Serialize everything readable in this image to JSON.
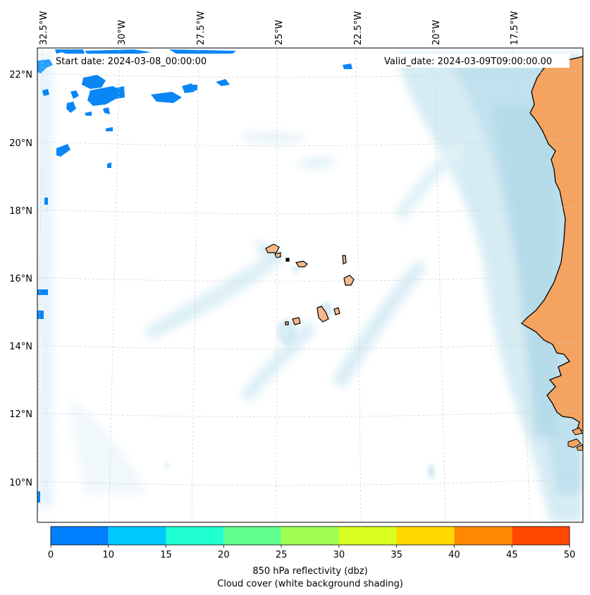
{
  "map": {
    "start_date": "Start date: 2024-03-08_00:00:00",
    "valid_date": "Valid_date: 2024-03-09T09:00:00.00",
    "lon_labels": [
      "32.5°W",
      "30°W",
      "27.5°W",
      "25°W",
      "22.5°W",
      "20°W",
      "17.5°W"
    ],
    "lat_labels": [
      "22°N",
      "20°N",
      "18°N",
      "16°N",
      "14°N",
      "12°N",
      "10°N"
    ],
    "land_color": "#f4a460",
    "cloud_color": "#add8e6",
    "coastline_color": "#000000"
  },
  "colorbar": {
    "ticks": [
      "0",
      "10",
      "15",
      "20",
      "25",
      "30",
      "35",
      "40",
      "45",
      "50"
    ],
    "colors": [
      "#0080ff",
      "#00c8ff",
      "#20ffd0",
      "#60ff90",
      "#a0ff50",
      "#d8ff20",
      "#ffd800",
      "#ff8800",
      "#ff4800"
    ],
    "label_line1": "850 hPa reflectivity (dbz)",
    "label_line2": "Cloud cover (white background shading)"
  }
}
